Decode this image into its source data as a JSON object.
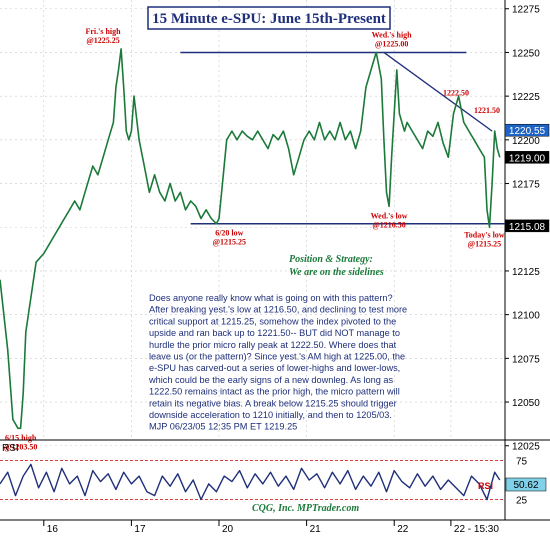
{
  "chart_data": [
    {
      "type": "line",
      "panel": "price",
      "title": "15 Minute e-SPU: June 15th-Present",
      "ylim": [
        12030,
        12280
      ],
      "y_ticks": [
        "12275",
        "12250",
        "12225",
        "12200",
        "12175",
        "12150",
        "12125",
        "12100",
        "12075",
        "12050",
        "12025"
      ],
      "price_tags": [
        {
          "label": "1220.55",
          "value": 12205.5,
          "style": "highlight"
        },
        {
          "label": "1219.00",
          "value": 12190,
          "style": "dark"
        },
        {
          "label": "1215.08",
          "value": 12150.8,
          "style": "dark"
        }
      ],
      "x_labels": [
        {
          "label": "16",
          "t": 17
        },
        {
          "label": "17",
          "t": 51
        },
        {
          "label": "20",
          "t": 85
        },
        {
          "label": "21",
          "t": 119
        },
        {
          "label": "22",
          "t": 153
        },
        {
          "label": "22 - 15:30",
          "t": 175
        }
      ],
      "xlim": [
        0,
        196
      ],
      "series": [
        {
          "style": "price",
          "x": [
            0,
            3,
            5,
            7,
            8,
            9,
            10,
            13,
            14,
            17,
            19,
            21,
            23,
            25,
            27,
            29,
            31,
            33,
            36,
            38,
            40,
            42,
            44,
            45,
            46,
            47,
            48,
            49,
            50,
            51,
            52,
            54,
            56,
            58,
            60,
            62,
            64,
            66,
            68,
            70,
            72,
            74,
            76,
            78,
            80,
            82,
            84,
            85,
            86,
            88,
            90,
            92,
            94,
            96,
            98,
            100,
            102,
            104,
            106,
            108,
            110,
            112,
            114,
            116,
            118,
            120,
            122,
            124,
            126,
            128,
            130,
            132,
            134,
            136,
            138,
            140,
            142,
            144,
            146,
            148,
            149,
            150,
            151,
            152,
            153,
            154,
            155,
            156,
            157,
            158,
            160,
            162,
            164,
            166,
            168,
            170,
            172,
            174,
            176,
            178,
            180,
            182,
            184,
            186,
            188,
            189,
            190,
            191,
            192,
            193,
            194
          ],
          "values": [
            12120,
            12080,
            12040,
            12035,
            12035,
            12055,
            12090,
            12120,
            12130,
            12135,
            12140,
            12145,
            12150,
            12155,
            12160,
            12165,
            12160,
            12170,
            12185,
            12180,
            12190,
            12200,
            12210,
            12230,
            12240,
            12252,
            12230,
            12205,
            12200,
            12205,
            12225,
            12200,
            12185,
            12170,
            12180,
            12170,
            12165,
            12175,
            12165,
            12170,
            12160,
            12165,
            12162,
            12155,
            12160,
            12155,
            12152,
            12155,
            12170,
            12200,
            12205,
            12200,
            12205,
            12202,
            12200,
            12205,
            12200,
            12195,
            12203,
            12200,
            12205,
            12195,
            12180,
            12190,
            12200,
            12205,
            12200,
            12210,
            12200,
            12205,
            12200,
            12210,
            12200,
            12205,
            12195,
            12205,
            12230,
            12240,
            12250,
            12235,
            12200,
            12170,
            12162,
            12190,
            12215,
            12240,
            12215,
            12210,
            12205,
            12210,
            12205,
            12200,
            12195,
            12205,
            12202,
            12210,
            12198,
            12190,
            12215,
            12225,
            12210,
            12205,
            12200,
            12195,
            12190,
            12160,
            12150,
            12175,
            12205,
            12195,
            12190
          ]
        }
      ],
      "reference_lines": [
        {
          "role": "resistance",
          "y": 12250,
          "x": [
            70,
            181
          ]
        },
        {
          "role": "support",
          "y": 12152,
          "x": [
            74,
            196
          ]
        },
        {
          "role": "downtrend",
          "points": [
            [
              149,
              12250
            ],
            [
              191,
              12205
            ]
          ]
        }
      ],
      "annotations": [
        {
          "lines": [
            "Fri.'s high",
            "@1225.25"
          ],
          "x": 40,
          "y": 12252,
          "color": "#cc0000"
        },
        {
          "lines": [
            "Wed.'s high",
            "@1225.00"
          ],
          "x": 152,
          "y": 12250,
          "color": "#cc0000"
        },
        {
          "lines": [
            "1222.50"
          ],
          "x": 177,
          "y": 12222,
          "color": "#cc0000"
        },
        {
          "lines": [
            "1221.50"
          ],
          "x": 189,
          "y": 12212,
          "color": "#cc0000"
        },
        {
          "lines": [
            "Wed.'s low",
            "@1216.50"
          ],
          "x": 151,
          "y": 12162,
          "color": "#cc0000"
        },
        {
          "lines": [
            "6/20 low",
            "@1215.25"
          ],
          "x": 89,
          "y": 12152,
          "color": "#cc0000"
        },
        {
          "lines": [
            "Today's low",
            "@1215.25"
          ],
          "x": 188,
          "y": 12151,
          "color": "#cc0000"
        },
        {
          "lines": [
            "6/15 high",
            "@1203.50"
          ],
          "x": 8,
          "y": 12035,
          "color": "#cc0000"
        }
      ],
      "position_strategy": [
        "Position & Strategy:",
        "We are on the sidelines"
      ],
      "commentary": [
        "Does anyone really know what is going on with this pattern?",
        "After breaking yest.'s low at 1216.50, and declining to test more",
        "critical support at 1215.25, somehow the index pivoted to the",
        "upside and ran back up to 1221.50-- BUT did NOT manage to",
        "hurdle the prior micro rally peak at 1222.50. Where does that",
        "leave us (or the pattern)? Since yest.'s AM high at 1225.00, the",
        "e-SPU has carved-out a series of lower-highs and lower-lows,",
        "which could be the early signs of a new downleg. As long as",
        "1222.50 remains intact as the prior high, the micro pattern will",
        "retain its negative bias. A break below 1215.25 should trigger",
        "downside acceleration to 1210 initially, and then to 1205/03.",
        "MJP 06/23/05 12:35 PM ET 1219.25"
      ]
    },
    {
      "type": "line",
      "panel": "indicator",
      "label": "RSI",
      "series_name": "RSI",
      "ylim": [
        0,
        100
      ],
      "y_ticks": [
        "75",
        "25"
      ],
      "current": {
        "label": "50.62",
        "value": 50.62
      },
      "levels": [
        75,
        25
      ],
      "watermark": "CQG, Inc. MPTrader.com",
      "x": [
        0,
        3,
        6,
        9,
        12,
        15,
        18,
        21,
        24,
        27,
        30,
        33,
        36,
        39,
        42,
        45,
        48,
        51,
        54,
        57,
        60,
        63,
        66,
        69,
        72,
        75,
        78,
        81,
        84,
        87,
        90,
        93,
        96,
        99,
        102,
        105,
        108,
        111,
        114,
        117,
        120,
        123,
        126,
        129,
        132,
        135,
        138,
        141,
        144,
        147,
        150,
        153,
        156,
        159,
        162,
        165,
        168,
        171,
        174,
        177,
        180,
        183,
        186,
        189,
        192,
        194
      ],
      "values": [
        45,
        60,
        30,
        55,
        70,
        40,
        60,
        35,
        65,
        45,
        55,
        30,
        62,
        48,
        58,
        38,
        60,
        45,
        55,
        35,
        30,
        55,
        42,
        58,
        35,
        50,
        25,
        45,
        35,
        55,
        48,
        62,
        40,
        58,
        45,
        60,
        42,
        55,
        38,
        65,
        50,
        58,
        40,
        60,
        45,
        62,
        38,
        55,
        42,
        60,
        35,
        62,
        48,
        40,
        58,
        42,
        55,
        38,
        50,
        40,
        30,
        55,
        45,
        25,
        60,
        50
      ]
    }
  ]
}
